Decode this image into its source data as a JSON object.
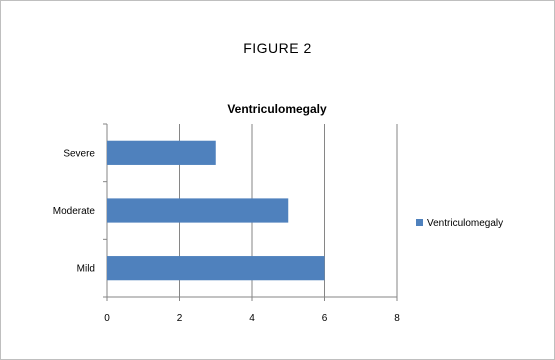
{
  "figure_label": "FIGURE 2",
  "chart_data": {
    "type": "bar",
    "orientation": "horizontal",
    "title": "Ventriculomegaly",
    "categories": [
      "Mild",
      "Moderate",
      "Severe"
    ],
    "series": [
      {
        "name": "Ventriculomegaly",
        "values": [
          6,
          5,
          3
        ],
        "color": "#4f81bd"
      }
    ],
    "xlim": [
      0,
      8
    ],
    "xticks": [
      0,
      2,
      4,
      6,
      8
    ],
    "grid": "vertical",
    "legend_position": "right"
  }
}
